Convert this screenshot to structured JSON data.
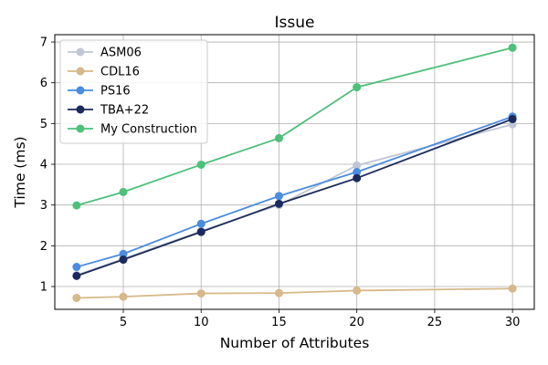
{
  "chart_data": {
    "type": "line",
    "title": "Issue",
    "xlabel": "Number of Attributes",
    "ylabel": "Time (ms)",
    "x": [
      2,
      5,
      10,
      15,
      20,
      30
    ],
    "xticks": [
      5,
      10,
      15,
      20,
      25,
      30
    ],
    "yticks": [
      1,
      2,
      3,
      4,
      5,
      6,
      7
    ],
    "xlim": [
      0.6,
      31.4
    ],
    "ylim": [
      0.44,
      7.18
    ],
    "grid": true,
    "legend_position": "top-left",
    "series": [
      {
        "name": "ASM06",
        "color": "#c0c6d4",
        "values": [
          1.28,
          1.68,
          2.36,
          3.0,
          3.97,
          4.98
        ]
      },
      {
        "name": "CDL16",
        "color": "#d6b98a",
        "values": [
          0.72,
          0.75,
          0.83,
          0.84,
          0.9,
          0.95
        ]
      },
      {
        "name": "PS16",
        "color": "#4a8ce0",
        "values": [
          1.48,
          1.8,
          2.54,
          3.22,
          3.81,
          5.17
        ]
      },
      {
        "name": "TBA+22",
        "color": "#1b2a5c",
        "values": [
          1.26,
          1.66,
          2.34,
          3.03,
          3.66,
          5.11
        ]
      },
      {
        "name": "My Construction",
        "color": "#4dc07a",
        "values": [
          2.99,
          3.32,
          3.99,
          4.64,
          5.89,
          6.86
        ]
      }
    ]
  }
}
